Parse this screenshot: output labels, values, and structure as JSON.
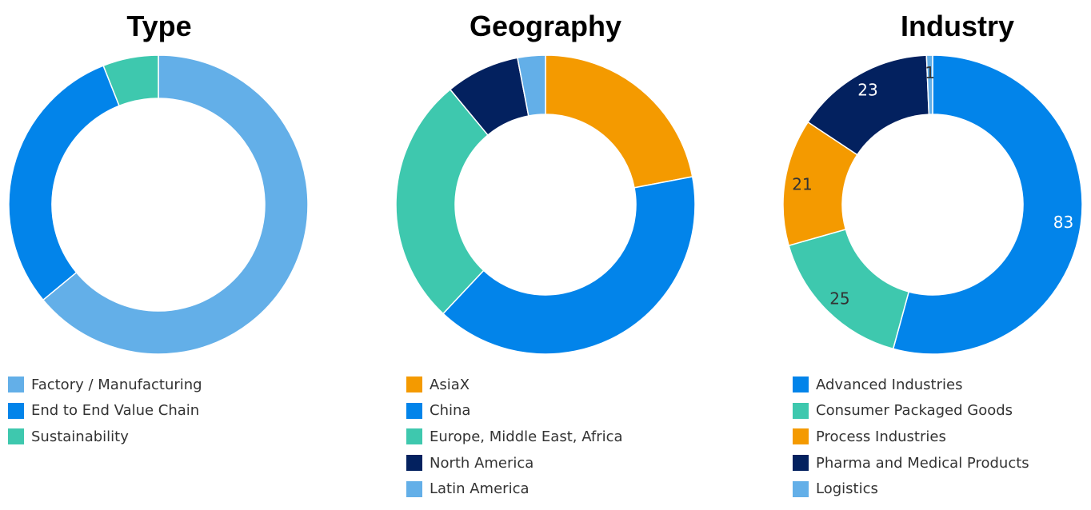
{
  "chart_data": [
    {
      "type": "pie",
      "title": "Type",
      "donut": true,
      "categories": [
        "Factory / Manufacturing",
        "End to End Value Chain",
        "Sustainability"
      ],
      "values": [
        64,
        30,
        6
      ],
      "value_unit": "percent (estimated, no data labels shown)",
      "colors": [
        "#63AFE8",
        "#0284EA",
        "#3EC8AE"
      ],
      "legend_position": "bottom-left"
    },
    {
      "type": "pie",
      "title": "Geography",
      "donut": true,
      "categories": [
        "AsiaX",
        "China",
        "Europe, Middle East, Africa",
        "North America",
        "Latin America"
      ],
      "values": [
        22,
        40,
        27,
        8,
        3
      ],
      "value_unit": "percent (estimated, no data labels shown)",
      "colors": [
        "#F49A00",
        "#0284EA",
        "#3EC8AE",
        "#03215F",
        "#63AFE8"
      ],
      "legend_position": "bottom-left"
    },
    {
      "type": "pie",
      "title": "Industry",
      "donut": true,
      "categories": [
        "Advanced Industries",
        "Consumer Packaged Goods",
        "Process Industries",
        "Pharma and Medical Products",
        "Logistics"
      ],
      "values": [
        83,
        25,
        21,
        23,
        1
      ],
      "data_labels": [
        "83",
        "25",
        "21",
        "23",
        "1"
      ],
      "colors": [
        "#0284EA",
        "#3EC8AE",
        "#F49A00",
        "#03215F",
        "#63AFE8"
      ],
      "legend_position": "bottom-left"
    }
  ]
}
